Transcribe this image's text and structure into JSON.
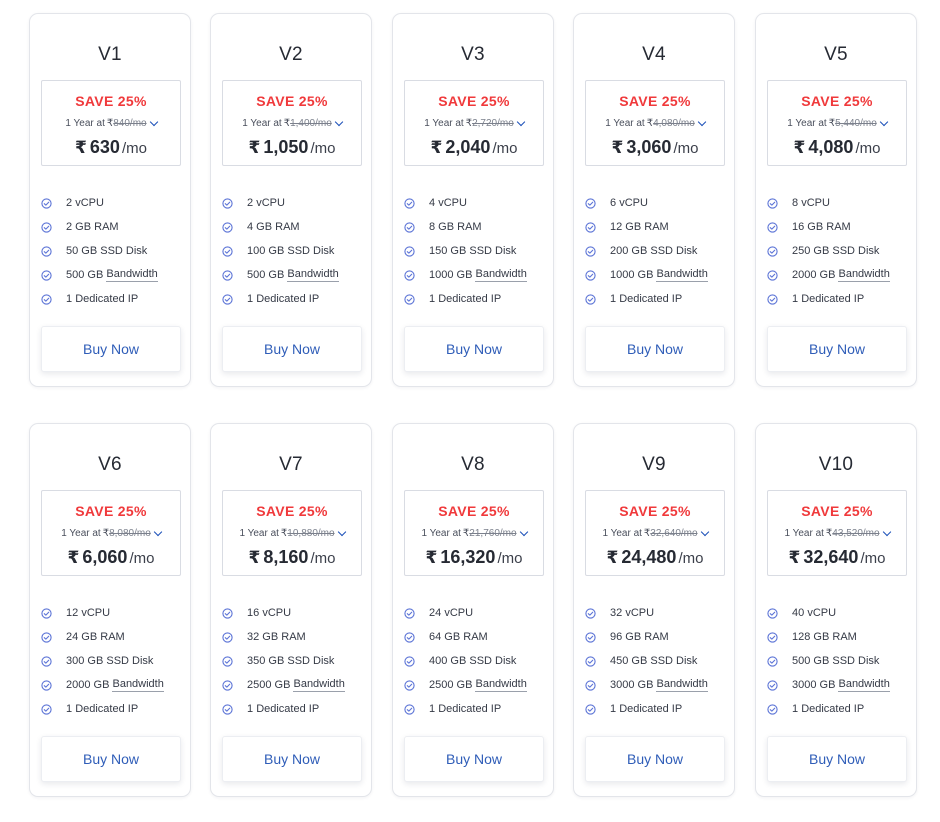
{
  "colors": {
    "save": "#f0393b",
    "accent_link": "#2f5db8",
    "check_icon": "#5b73d6",
    "chevron": "#1a4fb8"
  },
  "icons": {
    "feature_bullet": "check-circle-icon",
    "term_dropdown": "chevron-down-icon"
  },
  "plans": [
    {
      "name": "V1",
      "save": "SAVE 25%",
      "term_label": "1 Year at",
      "orig_currency": "₹",
      "orig_price": "840/mo",
      "currency": "₹",
      "price": "630",
      "per": "/mo",
      "features": [
        {
          "value": "2",
          "unit": "vCPU"
        },
        {
          "value": "2 GB",
          "unit": "RAM"
        },
        {
          "value": "50 GB",
          "unit": "SSD Disk"
        },
        {
          "value": "500 GB",
          "unit": "Bandwidth"
        },
        {
          "value": "1",
          "unit": "Dedicated IP"
        }
      ],
      "button": "Buy Now"
    },
    {
      "name": "V2",
      "save": "SAVE 25%",
      "term_label": "1 Year at",
      "orig_currency": "₹",
      "orig_price": "1,400/mo",
      "currency": "₹",
      "price": "1,050",
      "per": "/mo",
      "features": [
        {
          "value": "2",
          "unit": "vCPU"
        },
        {
          "value": "4 GB",
          "unit": "RAM"
        },
        {
          "value": "100 GB",
          "unit": "SSD Disk"
        },
        {
          "value": "500 GB",
          "unit": "Bandwidth"
        },
        {
          "value": "1",
          "unit": "Dedicated IP"
        }
      ],
      "button": "Buy Now"
    },
    {
      "name": "V3",
      "save": "SAVE 25%",
      "term_label": "1 Year at",
      "orig_currency": "₹",
      "orig_price": "2,720/mo",
      "currency": "₹",
      "price": "2,040",
      "per": "/mo",
      "features": [
        {
          "value": "4",
          "unit": "vCPU"
        },
        {
          "value": "8 GB",
          "unit": "RAM"
        },
        {
          "value": "150 GB",
          "unit": "SSD Disk"
        },
        {
          "value": "1000 GB",
          "unit": "Bandwidth"
        },
        {
          "value": "1",
          "unit": "Dedicated IP"
        }
      ],
      "button": "Buy Now"
    },
    {
      "name": "V4",
      "save": "SAVE 25%",
      "term_label": "1 Year at",
      "orig_currency": "₹",
      "orig_price": "4,080/mo",
      "currency": "₹",
      "price": "3,060",
      "per": "/mo",
      "features": [
        {
          "value": "6",
          "unit": "vCPU"
        },
        {
          "value": "12 GB",
          "unit": "RAM"
        },
        {
          "value": "200 GB",
          "unit": "SSD Disk"
        },
        {
          "value": "1000 GB",
          "unit": "Bandwidth"
        },
        {
          "value": "1",
          "unit": "Dedicated IP"
        }
      ],
      "button": "Buy Now"
    },
    {
      "name": "V5",
      "save": "SAVE 25%",
      "term_label": "1 Year at",
      "orig_currency": "₹",
      "orig_price": "5,440/mo",
      "currency": "₹",
      "price": "4,080",
      "per": "/mo",
      "features": [
        {
          "value": "8",
          "unit": "vCPU"
        },
        {
          "value": "16 GB",
          "unit": "RAM"
        },
        {
          "value": "250 GB",
          "unit": "SSD Disk"
        },
        {
          "value": "2000 GB",
          "unit": "Bandwidth"
        },
        {
          "value": "1",
          "unit": "Dedicated IP"
        }
      ],
      "button": "Buy Now"
    },
    {
      "name": "V6",
      "save": "SAVE 25%",
      "term_label": "1 Year at",
      "orig_currency": "₹",
      "orig_price": "8,080/mo",
      "currency": "₹",
      "price": "6,060",
      "per": "/mo",
      "features": [
        {
          "value": "12",
          "unit": "vCPU"
        },
        {
          "value": "24 GB",
          "unit": "RAM"
        },
        {
          "value": "300 GB",
          "unit": "SSD Disk"
        },
        {
          "value": "2000 GB",
          "unit": "Bandwidth"
        },
        {
          "value": "1",
          "unit": "Dedicated IP"
        }
      ],
      "button": "Buy Now"
    },
    {
      "name": "V7",
      "save": "SAVE 25%",
      "term_label": "1 Year at",
      "orig_currency": "₹",
      "orig_price": "10,880/mo",
      "currency": "₹",
      "price": "8,160",
      "per": "/mo",
      "features": [
        {
          "value": "16",
          "unit": "vCPU"
        },
        {
          "value": "32 GB",
          "unit": "RAM"
        },
        {
          "value": "350 GB",
          "unit": "SSD Disk"
        },
        {
          "value": "2500 GB",
          "unit": "Bandwidth"
        },
        {
          "value": "1",
          "unit": "Dedicated IP"
        }
      ],
      "button": "Buy Now"
    },
    {
      "name": "V8",
      "save": "SAVE 25%",
      "term_label": "1 Year at",
      "orig_currency": "₹",
      "orig_price": "21,760/mo",
      "currency": "₹",
      "price": "16,320",
      "per": "/mo",
      "features": [
        {
          "value": "24",
          "unit": "vCPU"
        },
        {
          "value": "64 GB",
          "unit": "RAM"
        },
        {
          "value": "400 GB",
          "unit": "SSD Disk"
        },
        {
          "value": "2500 GB",
          "unit": "Bandwidth"
        },
        {
          "value": "1",
          "unit": "Dedicated IP"
        }
      ],
      "button": "Buy Now"
    },
    {
      "name": "V9",
      "save": "SAVE 25%",
      "term_label": "1 Year at",
      "orig_currency": "₹",
      "orig_price": "32,640/mo",
      "currency": "₹",
      "price": "24,480",
      "per": "/mo",
      "features": [
        {
          "value": "32",
          "unit": "vCPU"
        },
        {
          "value": "96 GB",
          "unit": "RAM"
        },
        {
          "value": "450 GB",
          "unit": "SSD Disk"
        },
        {
          "value": "3000 GB",
          "unit": "Bandwidth"
        },
        {
          "value": "1",
          "unit": "Dedicated IP"
        }
      ],
      "button": "Buy Now"
    },
    {
      "name": "V10",
      "save": "SAVE 25%",
      "term_label": "1 Year at",
      "orig_currency": "₹",
      "orig_price": "43,520/mo",
      "currency": "₹",
      "price": "32,640",
      "per": "/mo",
      "features": [
        {
          "value": "40",
          "unit": "vCPU"
        },
        {
          "value": "128 GB",
          "unit": "RAM"
        },
        {
          "value": "500 GB",
          "unit": "SSD Disk"
        },
        {
          "value": "3000 GB",
          "unit": "Bandwidth"
        },
        {
          "value": "1",
          "unit": "Dedicated IP"
        }
      ],
      "button": "Buy Now"
    }
  ]
}
